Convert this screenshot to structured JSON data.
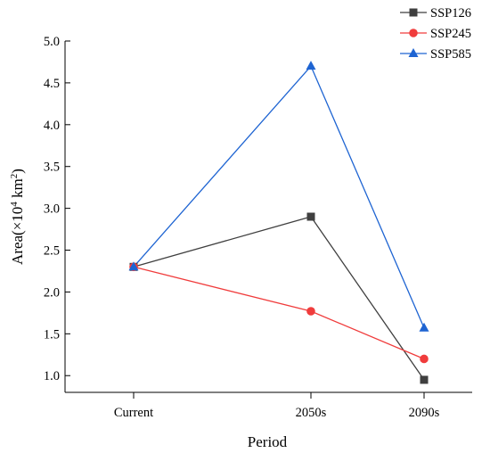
{
  "chart_data": {
    "type": "line",
    "categories": [
      "Current",
      "2050s",
      "2090s"
    ],
    "series": [
      {
        "name": "SSP126",
        "values": [
          2.3,
          2.9,
          0.95
        ],
        "color": "#3f3f3f",
        "marker": "square"
      },
      {
        "name": "SSP245",
        "values": [
          2.3,
          1.77,
          1.2
        ],
        "color": "#f03c3c",
        "marker": "circle"
      },
      {
        "name": "SSP585",
        "values": [
          2.3,
          4.7,
          1.57
        ],
        "color": "#1e64d2",
        "marker": "triangle"
      }
    ],
    "title": "",
    "xlabel": "Period",
    "ylabel": {
      "main": "Area(×10",
      "exp1": "4",
      "unit": " km",
      "exp2": "2",
      "close": ")"
    },
    "ylim": [
      0.8,
      5.0
    ],
    "yticks": [
      "1.0",
      "1.5",
      "2.0",
      "2.5",
      "3.0",
      "3.5",
      "4.0",
      "4.5",
      "5.0"
    ],
    "grid": false,
    "legend_position": "top-right"
  }
}
